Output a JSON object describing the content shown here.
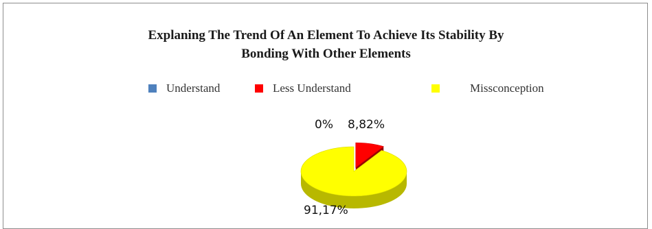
{
  "chart_data": {
    "type": "pie",
    "title": "Explaning The Trend Of An Element To Achieve Its Stability By Bonding With Other Elements",
    "title_lines": [
      "Explaning The Trend Of An Element To Achieve Its Stability By",
      "Bonding With Other Elements"
    ],
    "legend_placement": "top",
    "slices": [
      {
        "name": "Understand",
        "value": 0,
        "label": "0%",
        "color": "#4f81bd"
      },
      {
        "name": "Less Understand",
        "value": 8.82,
        "label": "8,82%",
        "color": "#ff0000"
      },
      {
        "name": "Missconception",
        "value": 91.17,
        "label": "91,17%",
        "color": "#ffff00"
      }
    ]
  }
}
